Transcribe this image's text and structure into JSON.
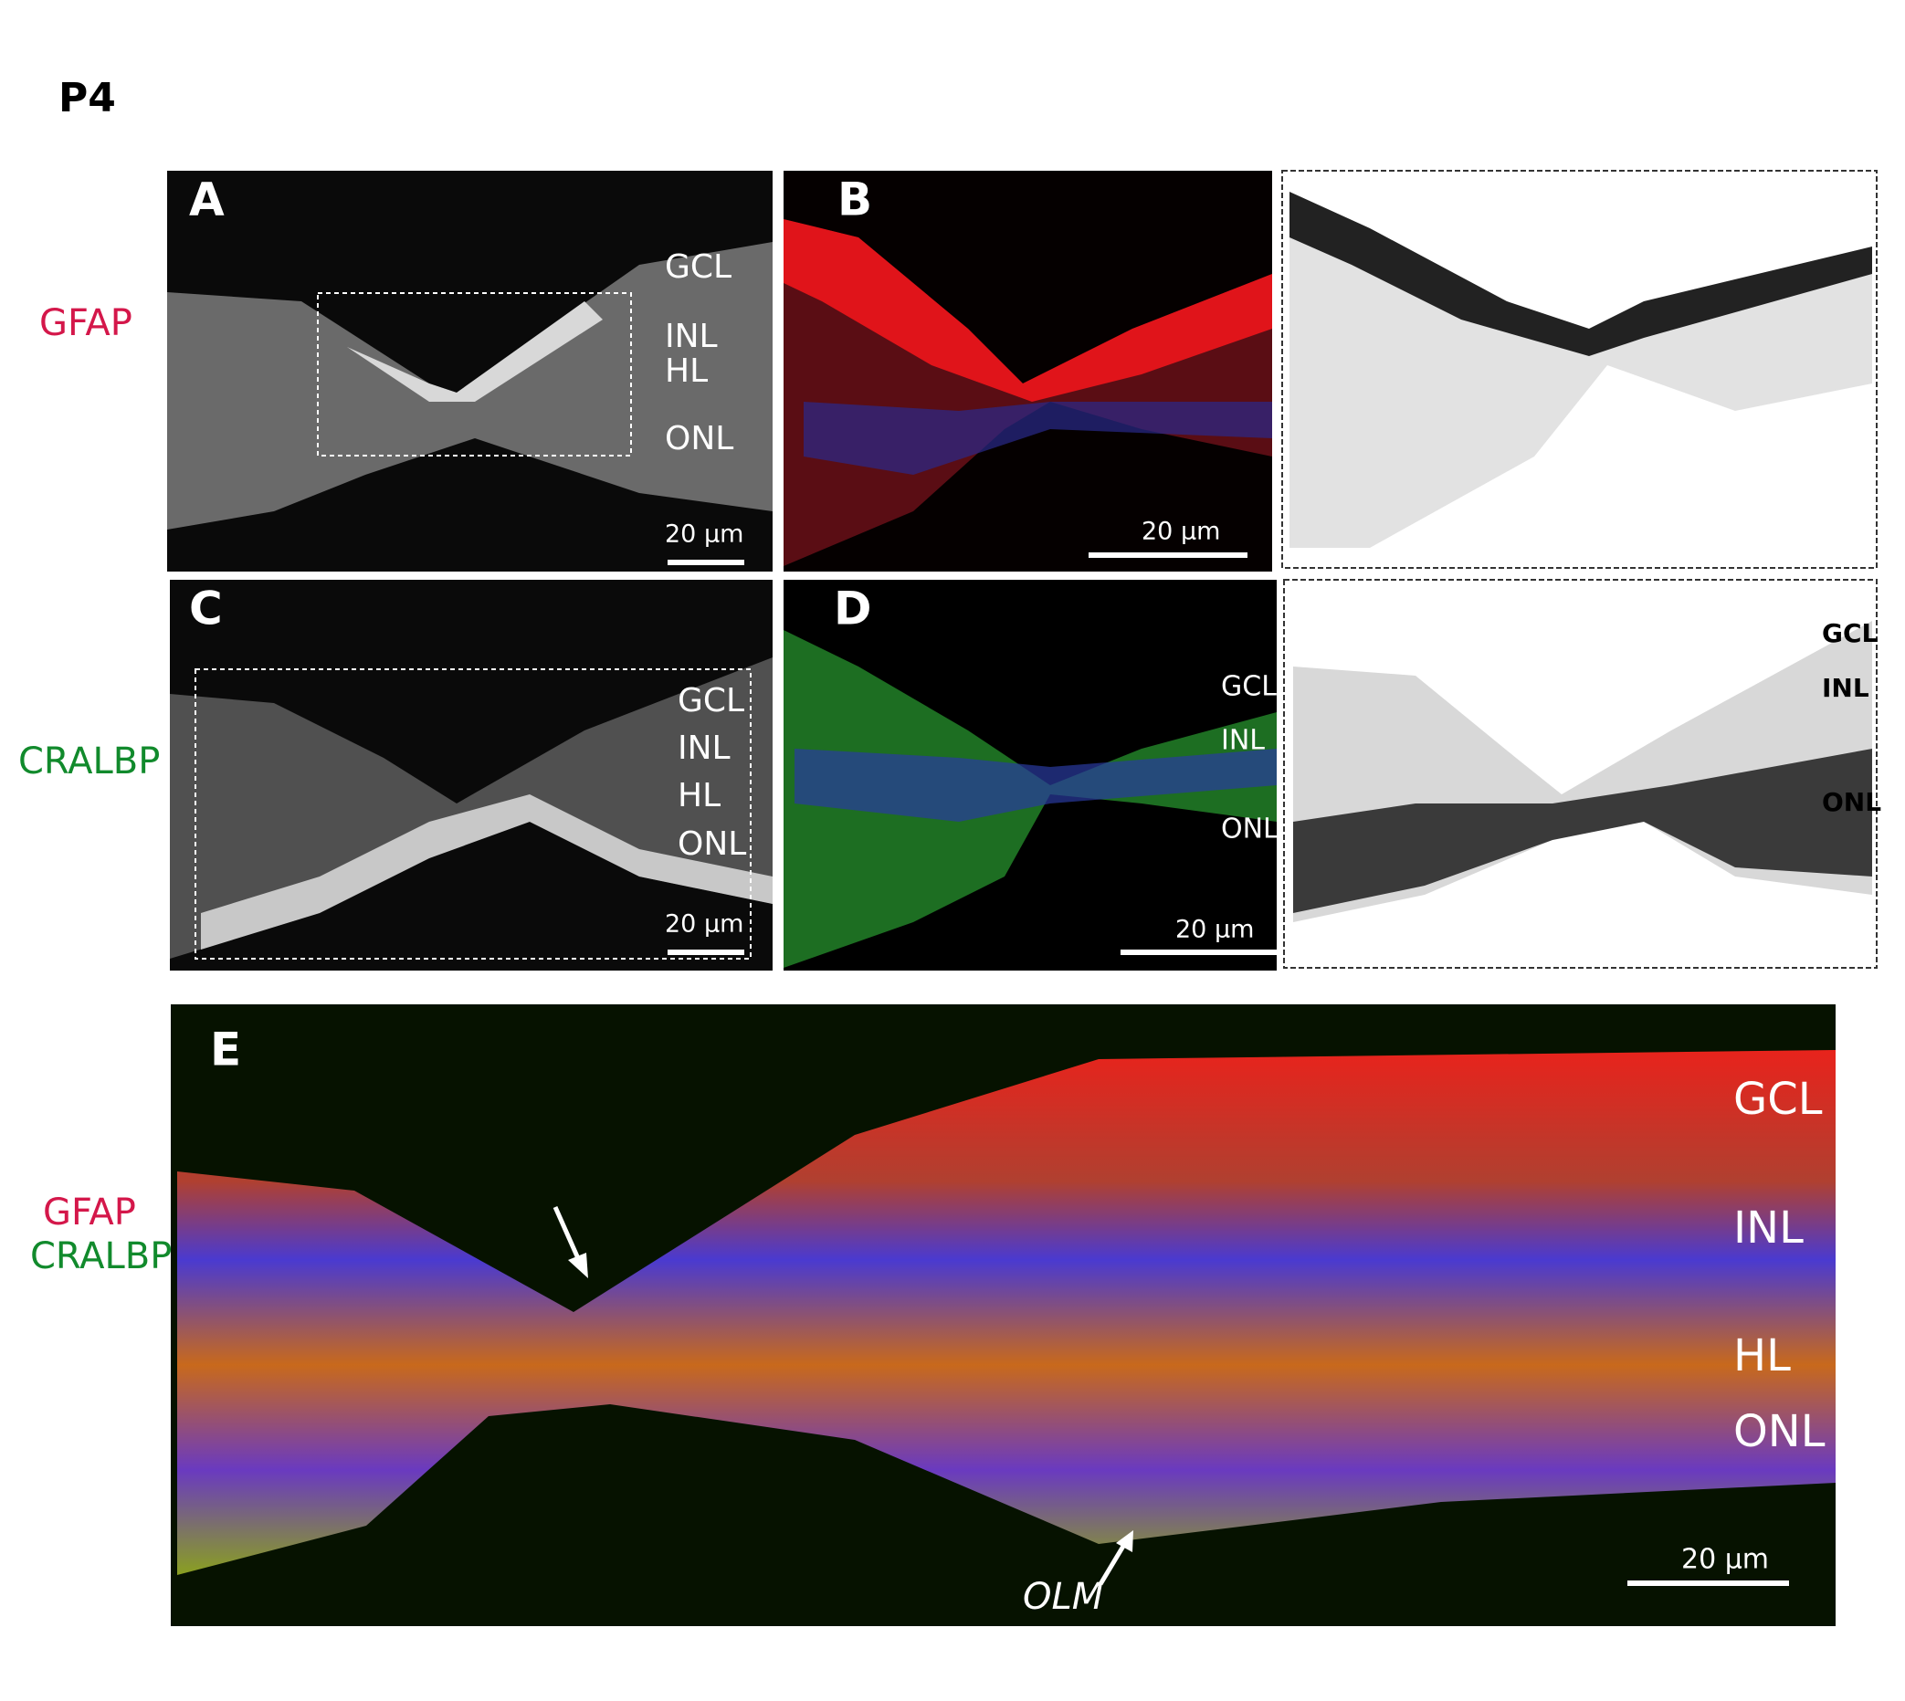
{
  "figure_label": "P4",
  "row_labels": {
    "top": "GFAP",
    "middle": "CRALBP"
  },
  "panels": {
    "a": {
      "letter": "A",
      "layers": [
        "GCL",
        "INL",
        "HL",
        "ONL"
      ],
      "scale_bar": "20 µm"
    },
    "b": {
      "letter": "B",
      "scale_bar": "20 µm"
    },
    "c": {
      "letter": "C",
      "layers": [
        "GCL",
        "INL",
        "HL",
        "ONL"
      ],
      "scale_bar": "20 µm"
    },
    "d": {
      "letter": "D",
      "layers": [
        "GCL",
        "INL",
        "ONL"
      ],
      "scale_bar": "20 µm"
    },
    "c_inverted": {
      "layers": [
        "GCL",
        "INL",
        "ONL"
      ]
    },
    "e": {
      "letter": "E",
      "stains": [
        "GFAP",
        "CRALBP"
      ],
      "layers": [
        "GCL",
        "INL",
        "HL",
        "ONL"
      ],
      "scale_bar": "20 µm",
      "annotation": "OLM"
    }
  }
}
